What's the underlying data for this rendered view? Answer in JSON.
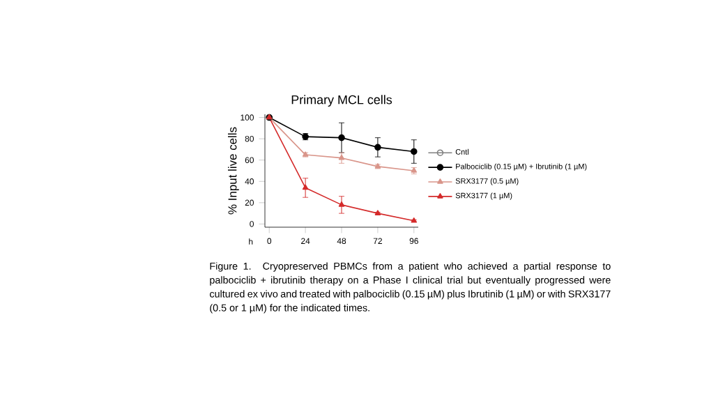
{
  "chart_data": {
    "type": "line",
    "title": "Primary MCL cells",
    "xlabel": "h",
    "ylabel": "% Input live cells",
    "x": [
      0,
      24,
      48,
      72,
      96
    ],
    "series": [
      {
        "name": "Cntl",
        "color": "#808080",
        "marker": "open circle",
        "values": [
          100,
          null,
          null,
          null,
          null
        ]
      },
      {
        "name": "Palbociclib (0.15 µM) + Ibrutinib (1 µM)",
        "color": "#000000",
        "marker": "circle",
        "values": [
          100,
          82,
          81,
          72,
          68
        ],
        "errors": [
          null,
          3,
          14,
          9,
          11
        ]
      },
      {
        "name": "SRX3177 (0.5 µM)",
        "color": "#d9958a",
        "marker": "triangle",
        "values": [
          100,
          65,
          62,
          54,
          50
        ],
        "errors": [
          null,
          2,
          5,
          2,
          3
        ]
      },
      {
        "name": "SRX3177 (1 µM)",
        "color": "#d42a2a",
        "marker": "triangle",
        "values": [
          100,
          34,
          18,
          10,
          3
        ],
        "errors": [
          null,
          9,
          8,
          1,
          1
        ]
      }
    ],
    "xlim": [
      0,
      96
    ],
    "xticks": [
      0,
      24,
      48,
      72,
      96
    ],
    "ylim": [
      0,
      100
    ],
    "yticks": [
      0,
      20,
      40,
      60,
      80,
      100
    ],
    "grid": false,
    "legend": "right",
    "line_style": "solid",
    "annotations": [
      "Figure 1. Cryopreserved PBMCs from a patient who achieved a partial response to palbociclib + ibrutinib therapy on a Phase I clinical trial but eventually progressed were cultured ex vivo and treated with palbociclib (0.15 µM) plus Ibrutinib (1 µM) or with SRX3177 (0.5 or 1 µM) for the indicated times."
    ]
  }
}
